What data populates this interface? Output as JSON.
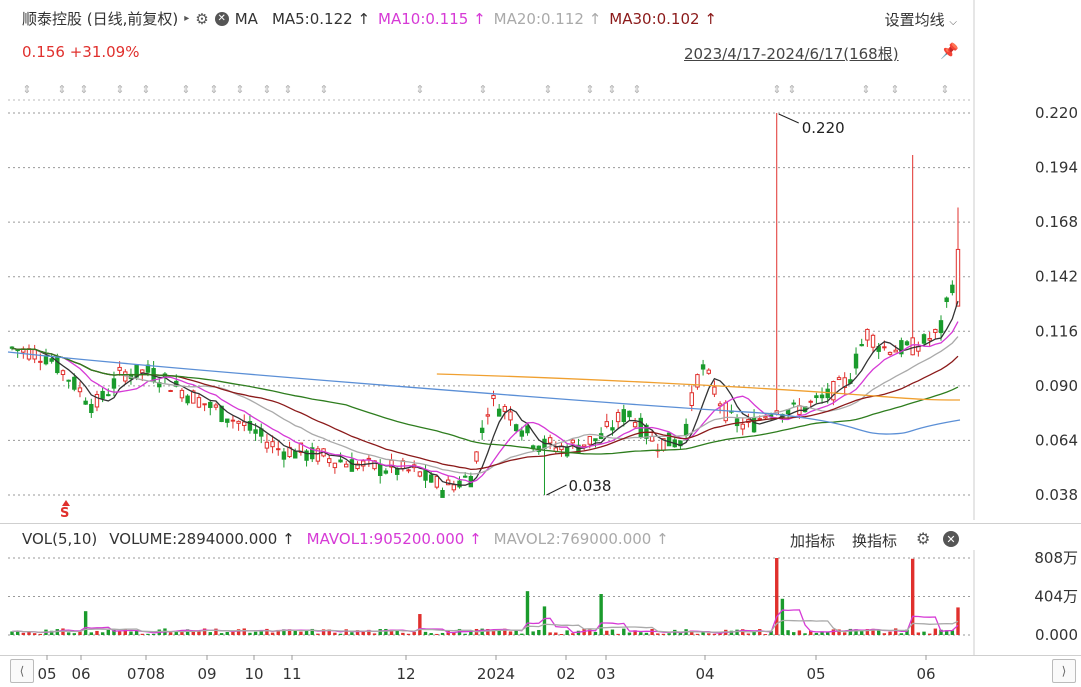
{
  "header": {
    "title": "顺泰控股 (日线,前复权)",
    "ma_label": "MA",
    "ma_items": [
      {
        "text": "MA5:0.122 ↑",
        "color": "#333333"
      },
      {
        "text": "MA10:0.115 ↑",
        "color": "#d63ad6"
      },
      {
        "text": "MA20:0.112 ↑",
        "color": "#aaaaaa"
      },
      {
        "text": "MA30:0.102 ↑",
        "color": "#8b1a1a"
      }
    ],
    "settings_label": "设置均线",
    "price_change": "0.156 +31.09%",
    "date_range": "2023/4/17-2024/6/17(168根)"
  },
  "volume_header": {
    "vol_label": "VOL(5,10)",
    "volume_text": "VOLUME:2894000.000 ↑",
    "mavol1_text": "MAVOL1:905200.000 ↑",
    "mavol2_text": "MAVOL2:769000.000 ↑",
    "add_indicator": "加指标",
    "switch_indicator": "换指标"
  },
  "colors": {
    "up": "#e0302d",
    "down": "#1a9b2c",
    "ma5": "#333333",
    "ma10": "#d63ad6",
    "ma20": "#aaaaaa",
    "ma30": "#8b1a1a",
    "ma60": "#2e7d1e",
    "ma120": "#f0a030",
    "ma250": "#5b8fd6"
  },
  "chart_data": {
    "type": "candlestick",
    "y_ticks": [
      "0.220",
      "0.194",
      "0.168",
      "0.142",
      "0.116",
      "0.090",
      "0.064",
      "0.038"
    ],
    "ylim": [
      0.038,
      0.22
    ],
    "x_ticks": [
      "05",
      "06",
      "0708",
      "09",
      "10",
      "11",
      "12",
      "2024",
      "02",
      "03",
      "04",
      "05",
      "06"
    ],
    "annotations": [
      {
        "text": "0.220",
        "value": 0.22
      },
      {
        "text": "0.038",
        "value": 0.038
      }
    ],
    "marker": "S",
    "volume": {
      "y_ticks": [
        "808万",
        "404万",
        "0.000"
      ],
      "ylim": [
        0,
        8080000
      ]
    }
  }
}
